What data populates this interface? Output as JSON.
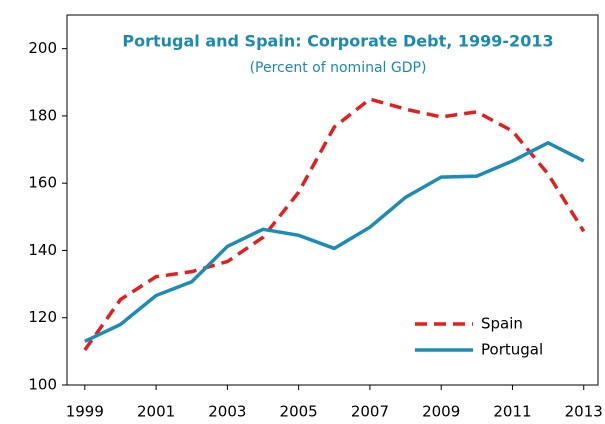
{
  "chart_data": {
    "type": "line",
    "title": "Portugal and Spain: Corporate  Debt, 1999-2013",
    "subtitle": "(Percent of nominal GDP)",
    "x": [
      1999,
      2000,
      2001,
      2002,
      2003,
      2004,
      2005,
      2006,
      2007,
      2008,
      2009,
      2010,
      2011,
      2012,
      2013
    ],
    "series": [
      {
        "name": "Spain",
        "color": "#e41e1e",
        "dashed": true,
        "values": [
          110.4,
          125.4,
          132.2,
          133.7,
          136.7,
          143.9,
          157.3,
          176.7,
          185,
          182,
          179.7,
          181.2,
          175.5,
          162.7,
          145.7
        ]
      },
      {
        "name": "Portugal",
        "color": "#1c8bb5",
        "dashed": false,
        "values": [
          113,
          118,
          126.6,
          130.7,
          141.2,
          146.3,
          144.5,
          140.6,
          146.9,
          155.8,
          161.8,
          162.1,
          166.6,
          172,
          166.6
        ]
      }
    ],
    "xlim": [
      1998.5,
      2013.4
    ],
    "xticks": [
      1999,
      2001,
      2003,
      2005,
      2007,
      2009,
      2011,
      2013
    ],
    "ylim": [
      100,
      210
    ],
    "yticks": [
      100,
      120,
      140,
      160,
      180,
      200
    ],
    "grid": false,
    "legend": "lower right"
  }
}
